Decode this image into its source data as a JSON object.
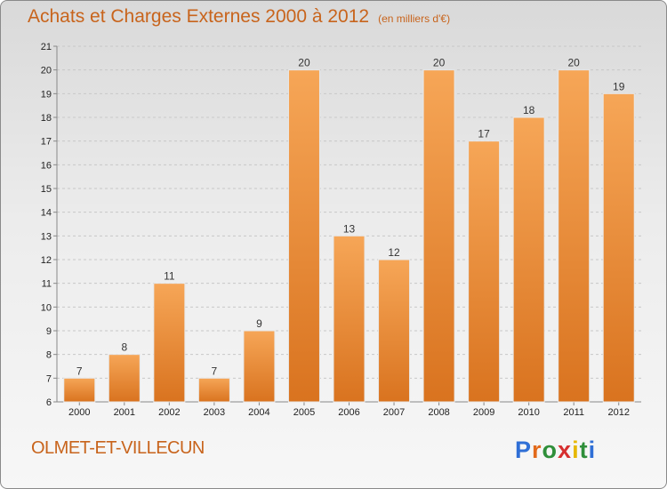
{
  "title": "Achats et Charges Externes 2000 à 2012",
  "subtitle": "(en milliers d'€)",
  "place": "OLMET-ET-VILLECUN",
  "logo": {
    "letters": [
      "P",
      "r",
      "o",
      "x",
      "i",
      "t",
      "i"
    ],
    "colors": [
      "#2f6fd6",
      "#e26a1b",
      "#2f8f3a",
      "#d62f2f",
      "#e6b800",
      "#2f8f3a",
      "#2f6fd6"
    ]
  },
  "colors": {
    "bar_top": "#f6a657",
    "bar_bottom": "#d9731f",
    "title": "#c8641c"
  },
  "chart_data": {
    "type": "bar",
    "title": "Achats et Charges Externes 2000 à 2012",
    "subtitle": "(en milliers d'€)",
    "categories": [
      "2000",
      "2001",
      "2002",
      "2003",
      "2004",
      "2005",
      "2006",
      "2007",
      "2008",
      "2009",
      "2010",
      "2011",
      "2012"
    ],
    "values": [
      7,
      8,
      11,
      7,
      9,
      20,
      13,
      12,
      20,
      17,
      18,
      20,
      19
    ],
    "ylim": [
      6,
      21
    ],
    "yticks": [
      6,
      7,
      8,
      9,
      10,
      11,
      12,
      13,
      14,
      15,
      16,
      17,
      18,
      19,
      20,
      21
    ],
    "grid": "horizontal dashed",
    "xlabel": "",
    "ylabel": ""
  }
}
